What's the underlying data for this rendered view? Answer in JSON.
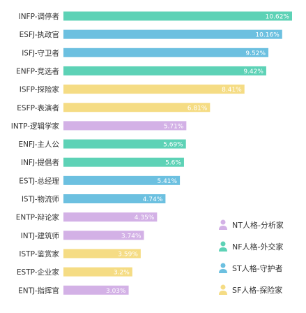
{
  "chart_data": {
    "type": "bar",
    "orientation": "horizontal",
    "title": "",
    "xlabel": "",
    "ylabel": "",
    "xlim": [
      0,
      10.62
    ],
    "grid": false,
    "legend_position": "bottom-right",
    "value_label_suffix": "%",
    "categories": [
      "INFP-调停者",
      "ESFJ-执政官",
      "ISFJ-守卫者",
      "ENFP-竞选者",
      "ISFP-探险家",
      "ESFP-表演者",
      "INTP-逻辑学家",
      "ENFJ-主人公",
      "INFJ-提倡者",
      "ESTJ-总经理",
      "ISTJ-物流师",
      "ENTP-辩论家",
      "INTJ-建筑师",
      "ISTP-鉴赏家",
      "ESTP-企业家",
      "ENTJ-指挥官"
    ],
    "values": [
      10.62,
      10.16,
      9.52,
      9.42,
      8.41,
      6.81,
      5.71,
      5.69,
      5.6,
      5.41,
      4.74,
      4.35,
      3.74,
      3.59,
      3.2,
      3.03
    ],
    "value_labels": [
      "10.62%",
      "10.16%",
      "9.52%",
      "9.42%",
      "8.41%",
      "6.81%",
      "5.71%",
      "5.69%",
      "5.6%",
      "5.41%",
      "4.74%",
      "4.35%",
      "3.74%",
      "3.59%",
      "3.2%",
      "3.03%"
    ],
    "groups": [
      "NF",
      "SJ",
      "SJ",
      "NF",
      "SP",
      "SP",
      "NT",
      "NF",
      "NF",
      "SJ",
      "SJ",
      "NT",
      "NT",
      "SP",
      "SP",
      "NT"
    ],
    "legend": [
      {
        "key": "NT",
        "label": "NT人格-分析家",
        "color": "#d3b1e6"
      },
      {
        "key": "NF",
        "label": "NF人格-外交家",
        "color": "#5dd2b6"
      },
      {
        "key": "SJ",
        "label": "ST人格-守护者",
        "color": "#6cc0e0"
      },
      {
        "key": "SP",
        "label": "SF人格-探险家",
        "color": "#f5dc84"
      }
    ]
  }
}
